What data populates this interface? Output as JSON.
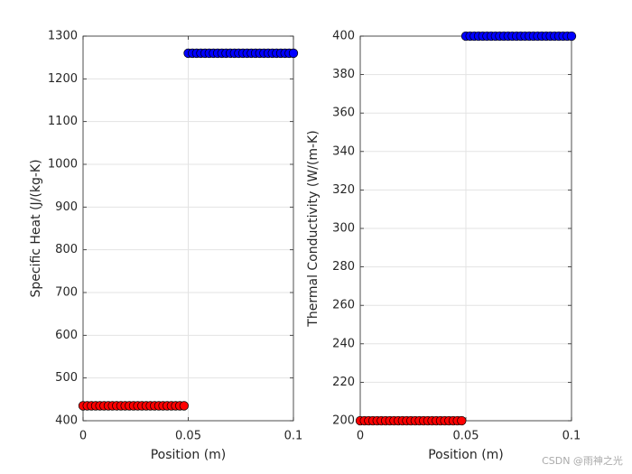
{
  "chart_data": [
    {
      "type": "scatter",
      "xlabel": "Position (m)",
      "ylabel": "Specific Heat (J/(kg-K)",
      "xlim": [
        0,
        0.1
      ],
      "xticks": [
        0,
        0.05,
        0.1
      ],
      "ylim": [
        400,
        1300
      ],
      "yticks": [
        400,
        500,
        600,
        700,
        800,
        900,
        1000,
        1100,
        1200,
        1300
      ],
      "grid": true,
      "series": [
        {
          "color": "#ff0000",
          "x": [
            0,
            0.002,
            0.004,
            0.006,
            0.008,
            0.01,
            0.012,
            0.014,
            0.016,
            0.018,
            0.02,
            0.022,
            0.024,
            0.026,
            0.028,
            0.03,
            0.032,
            0.034,
            0.036,
            0.038,
            0.04,
            0.042,
            0.044,
            0.046,
            0.048
          ],
          "values": [
            435,
            435,
            435,
            435,
            435,
            435,
            435,
            435,
            435,
            435,
            435,
            435,
            435,
            435,
            435,
            435,
            435,
            435,
            435,
            435,
            435,
            435,
            435,
            435,
            435
          ]
        },
        {
          "color": "#0000ff",
          "x": [
            0.05,
            0.052,
            0.054,
            0.056,
            0.058,
            0.06,
            0.062,
            0.064,
            0.066,
            0.068,
            0.07,
            0.072,
            0.074,
            0.076,
            0.078,
            0.08,
            0.082,
            0.084,
            0.086,
            0.088,
            0.09,
            0.092,
            0.094,
            0.096,
            0.098,
            0.1
          ],
          "values": [
            1260,
            1260,
            1260,
            1260,
            1260,
            1260,
            1260,
            1260,
            1260,
            1260,
            1260,
            1260,
            1260,
            1260,
            1260,
            1260,
            1260,
            1260,
            1260,
            1260,
            1260,
            1260,
            1260,
            1260,
            1260,
            1260
          ]
        }
      ]
    },
    {
      "type": "scatter",
      "xlabel": "Position (m)",
      "ylabel": "Thermal Conductivity (W/(m-K)",
      "xlim": [
        0,
        0.1
      ],
      "xticks": [
        0,
        0.05,
        0.1
      ],
      "ylim": [
        200,
        400
      ],
      "yticks": [
        200,
        220,
        240,
        260,
        280,
        300,
        320,
        340,
        360,
        380,
        400
      ],
      "grid": true,
      "series": [
        {
          "color": "#ff0000",
          "x": [
            0,
            0.002,
            0.004,
            0.006,
            0.008,
            0.01,
            0.012,
            0.014,
            0.016,
            0.018,
            0.02,
            0.022,
            0.024,
            0.026,
            0.028,
            0.03,
            0.032,
            0.034,
            0.036,
            0.038,
            0.04,
            0.042,
            0.044,
            0.046,
            0.048
          ],
          "values": [
            200,
            200,
            200,
            200,
            200,
            200,
            200,
            200,
            200,
            200,
            200,
            200,
            200,
            200,
            200,
            200,
            200,
            200,
            200,
            200,
            200,
            200,
            200,
            200,
            200
          ]
        },
        {
          "color": "#0000ff",
          "x": [
            0.05,
            0.052,
            0.054,
            0.056,
            0.058,
            0.06,
            0.062,
            0.064,
            0.066,
            0.068,
            0.07,
            0.072,
            0.074,
            0.076,
            0.078,
            0.08,
            0.082,
            0.084,
            0.086,
            0.088,
            0.09,
            0.092,
            0.094,
            0.096,
            0.098,
            0.1
          ],
          "values": [
            400,
            400,
            400,
            400,
            400,
            400,
            400,
            400,
            400,
            400,
            400,
            400,
            400,
            400,
            400,
            400,
            400,
            400,
            400,
            400,
            400,
            400,
            400,
            400,
            400,
            400
          ]
        }
      ]
    }
  ],
  "watermark": "CSDN @雨神之光"
}
